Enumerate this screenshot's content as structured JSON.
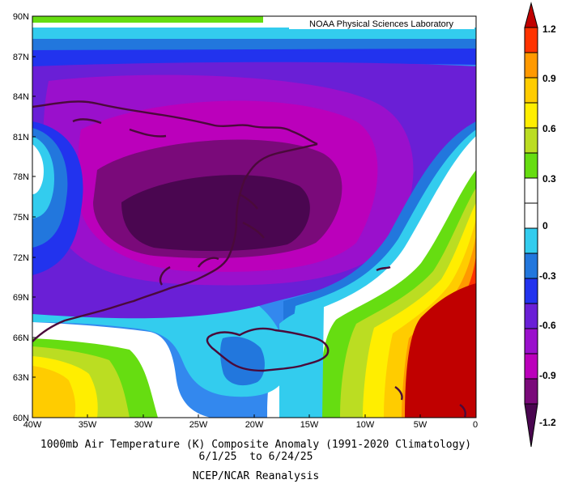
{
  "map": {
    "credit": "NOAA Physical Sciences Laboratory",
    "title_line1": "1000mb Air Temperature (K) Composite Anomaly (1991-2020 Climatology)",
    "title_line2": "6/1/25  to 6/24/25",
    "source": "NCEP/NCAR Reanalysis",
    "lat_labels": [
      "90N",
      "87N",
      "84N",
      "81N",
      "78N",
      "75N",
      "72N",
      "69N",
      "66N",
      "63N",
      "60N"
    ],
    "lon_labels": [
      "40W",
      "35W",
      "30W",
      "25W",
      "20W",
      "15W",
      "10W",
      "5W",
      "0"
    ],
    "region_lat": [
      60,
      90
    ],
    "region_lon": [
      -40,
      0
    ]
  },
  "colorbar": {
    "labels": [
      "1.2",
      "0.9",
      "0.6",
      "0.3",
      "0",
      "-0.3",
      "-0.6",
      "-0.9",
      "-1.2"
    ],
    "colors": {
      "red_dark": "#c00000",
      "red": "#ff3300",
      "orange": "#ff9900",
      "yellow_orange": "#ffcc00",
      "yellow": "#ffee00",
      "yellow_green": "#bbdd22",
      "green": "#66dd11",
      "white": "#ffffff",
      "cyan": "#33ccee",
      "blue_mid": "#2277dd",
      "blue": "#2233ee",
      "violet": "#6a1fd6",
      "purple": "#9a10cc",
      "magenta": "#bb00bb",
      "dark_purple": "#7a0a7a",
      "deep_purple": "#4a0650"
    }
  }
}
